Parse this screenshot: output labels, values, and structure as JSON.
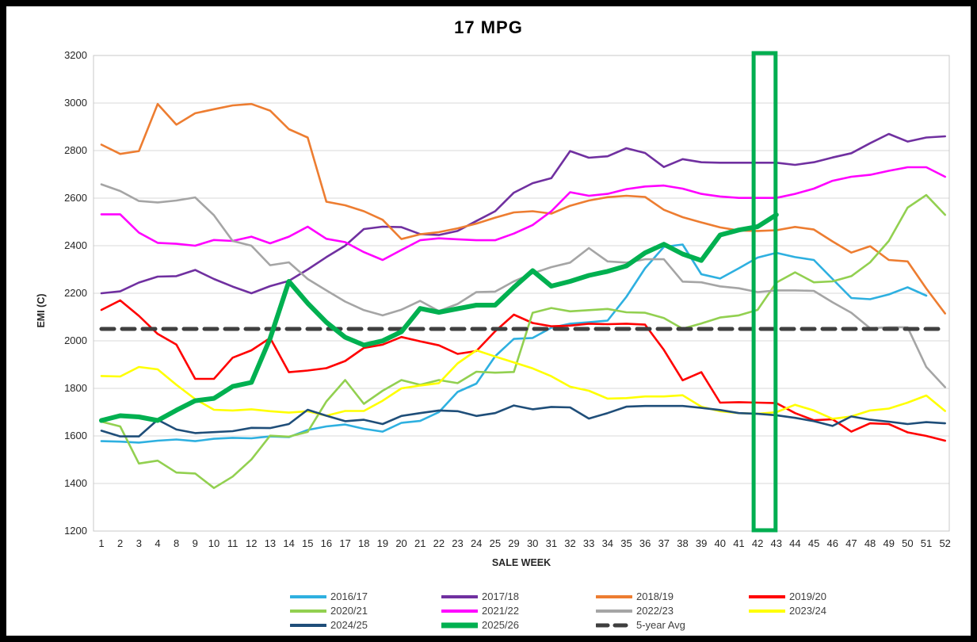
{
  "title": "17 MPG",
  "chart_data": {
    "type": "line",
    "title": "17 MPG",
    "xlabel": "SALE WEEK",
    "ylabel": "EMI (C)",
    "ylim": [
      1200,
      3200
    ],
    "y_ticks": [
      1200,
      1400,
      1600,
      1800,
      2000,
      2200,
      2400,
      2600,
      2800,
      3000,
      3200
    ],
    "grid": true,
    "legend_position": "bottom",
    "gridline_color": "#D9D9D9",
    "plot_border_color": "#C9C9C9",
    "tick_label_color": "#262626",
    "axis_title_color": "#262626",
    "legend_text_color": "#404040",
    "categories": [
      1,
      2,
      3,
      4,
      8,
      9,
      10,
      11,
      12,
      13,
      14,
      15,
      16,
      17,
      18,
      19,
      20,
      21,
      22,
      23,
      24,
      25,
      29,
      30,
      31,
      32,
      33,
      34,
      35,
      36,
      37,
      38,
      39,
      40,
      41,
      42,
      43,
      44,
      45,
      46,
      47,
      48,
      49,
      50,
      51,
      52
    ],
    "series": [
      {
        "name": "2016/17",
        "color": "#2EB0E0",
        "width": 2.6,
        "values": [
          1578,
          1576,
          1572,
          1580,
          1585,
          1578,
          1588,
          1592,
          1590,
          1598,
          1595,
          1625,
          1640,
          1648,
          1630,
          1618,
          1655,
          1663,
          1700,
          1785,
          1820,
          1935,
          2008,
          2012,
          2055,
          2072,
          2078,
          2085,
          2185,
          2305,
          2395,
          2405,
          2280,
          2262,
          2305,
          2350,
          2370,
          2352,
          2340,
          2260,
          2180,
          2175,
          2195,
          2225,
          2190,
          null
        ]
      },
      {
        "name": "2017/18",
        "color": "#7030A0",
        "width": 2.6,
        "values": [
          2200,
          2208,
          2245,
          2270,
          2272,
          2298,
          2260,
          2228,
          2200,
          2230,
          2252,
          2300,
          2352,
          2400,
          2470,
          2480,
          2478,
          2449,
          2445,
          2462,
          2504,
          2545,
          2623,
          2663,
          2684,
          2798,
          2770,
          2776,
          2810,
          2790,
          2731,
          2764,
          2751,
          2749,
          2749,
          2749,
          2749,
          2740,
          2751,
          2771,
          2789,
          2831,
          2870,
          2838,
          2855,
          2860
        ]
      },
      {
        "name": "2018/19",
        "color": "#ED7D31",
        "width": 2.6,
        "values": [
          2825,
          2786,
          2798,
          2996,
          2909,
          2957,
          2974,
          2990,
          2996,
          2968,
          2890,
          2855,
          2585,
          2570,
          2545,
          2509,
          2428,
          2448,
          2457,
          2473,
          2493,
          2518,
          2540,
          2545,
          2535,
          2568,
          2590,
          2604,
          2610,
          2605,
          2551,
          2520,
          2498,
          2477,
          2464,
          2462,
          2465,
          2479,
          2468,
          2418,
          2371,
          2398,
          2340,
          2334,
          2220,
          2115
        ]
      },
      {
        "name": "2019/20",
        "color": "#FF0000",
        "width": 2.6,
        "values": [
          2130,
          2170,
          2105,
          2029,
          1984,
          1840,
          1840,
          1929,
          1960,
          2012,
          1868,
          1875,
          1885,
          1915,
          1970,
          1984,
          2016,
          1998,
          1981,
          1945,
          1957,
          2040,
          2110,
          2075,
          2061,
          2064,
          2072,
          2070,
          2072,
          2068,
          1962,
          1834,
          1868,
          1740,
          1742,
          1740,
          1738,
          1696,
          1666,
          1670,
          1618,
          1653,
          1650,
          1615,
          1600,
          1580
        ]
      },
      {
        "name": "2020/21",
        "color": "#92D050",
        "width": 2.6,
        "values": [
          1660,
          1640,
          1484,
          1496,
          1446,
          1442,
          1381,
          1429,
          1501,
          1601,
          1597,
          1617,
          1745,
          1835,
          1735,
          1790,
          1835,
          1815,
          1835,
          1822,
          1870,
          1866,
          1869,
          2118,
          2138,
          2124,
          2129,
          2134,
          2120,
          2118,
          2096,
          2051,
          2073,
          2098,
          2107,
          2130,
          2245,
          2288,
          2246,
          2250,
          2272,
          2330,
          2420,
          2560,
          2613,
          2530
        ]
      },
      {
        "name": "2021/22",
        "color": "#FF00FF",
        "width": 2.6,
        "values": [
          2532,
          2532,
          2455,
          2412,
          2408,
          2400,
          2424,
          2420,
          2438,
          2410,
          2438,
          2480,
          2429,
          2415,
          2373,
          2340,
          2382,
          2423,
          2431,
          2427,
          2423,
          2423,
          2451,
          2487,
          2545,
          2625,
          2610,
          2618,
          2638,
          2649,
          2653,
          2640,
          2618,
          2607,
          2601,
          2601,
          2601,
          2618,
          2640,
          2673,
          2690,
          2698,
          2715,
          2730,
          2730,
          2690
        ]
      },
      {
        "name": "2022/23",
        "color": "#A5A5A5",
        "width": 2.6,
        "values": [
          2658,
          2630,
          2588,
          2582,
          2590,
          2603,
          2528,
          2420,
          2400,
          2318,
          2330,
          2260,
          2212,
          2165,
          2129,
          2107,
          2131,
          2168,
          2125,
          2155,
          2205,
          2207,
          2250,
          2284,
          2310,
          2329,
          2390,
          2334,
          2329,
          2343,
          2343,
          2249,
          2246,
          2229,
          2221,
          2205,
          2212,
          2212,
          2210,
          2162,
          2118,
          2053,
          2057,
          2057,
          1890,
          1805
        ]
      },
      {
        "name": "2023/24",
        "color": "#FFFF00",
        "width": 2.6,
        "values": [
          1852,
          1850,
          1890,
          1880,
          1815,
          1755,
          1710,
          1707,
          1712,
          1704,
          1698,
          1704,
          1685,
          1705,
          1705,
          1748,
          1800,
          1812,
          1822,
          1905,
          1960,
          1934,
          1909,
          1884,
          1851,
          1807,
          1790,
          1757,
          1759,
          1766,
          1766,
          1771,
          1723,
          1704,
          1696,
          1693,
          1700,
          1731,
          1707,
          1672,
          1682,
          1707,
          1715,
          1740,
          1770,
          1705
        ]
      },
      {
        "name": "2024/25",
        "color": "#1F4E79",
        "width": 2.6,
        "values": [
          1622,
          1598,
          1598,
          1668,
          1627,
          1612,
          1616,
          1620,
          1634,
          1633,
          1650,
          1710,
          1685,
          1662,
          1668,
          1650,
          1684,
          1696,
          1707,
          1704,
          1684,
          1696,
          1728,
          1712,
          1722,
          1720,
          1673,
          1696,
          1723,
          1726,
          1726,
          1726,
          1718,
          1709,
          1696,
          1693,
          1687,
          1676,
          1662,
          1642,
          1682,
          1668,
          1660,
          1650,
          1658,
          1653
        ]
      },
      {
        "name": "2025/26",
        "color": "#00B050",
        "width": 6,
        "values": [
          1665,
          1685,
          1680,
          1665,
          1708,
          1748,
          1758,
          1808,
          1825,
          2010,
          2250,
          2158,
          2078,
          2015,
          1982,
          2000,
          2038,
          2136,
          2120,
          2135,
          2150,
          2150,
          2225,
          2295,
          2230,
          2250,
          2275,
          2292,
          2315,
          2370,
          2406,
          2365,
          2338,
          2445,
          2466,
          2480,
          2530,
          null,
          null,
          null,
          null,
          null,
          null,
          null,
          null,
          null
        ]
      },
      {
        "name": "5-year Avg",
        "color": "#3F3F3F",
        "width": 5,
        "dash": "16 10",
        "values": [
          2050,
          2050,
          2050,
          2050,
          2050,
          2050,
          2050,
          2050,
          2050,
          2050,
          2050,
          2050,
          2050,
          2050,
          2050,
          2050,
          2050,
          2050,
          2050,
          2050,
          2050,
          2050,
          2050,
          2050,
          2050,
          2050,
          2050,
          2050,
          2050,
          2050,
          2050,
          2050,
          2050,
          2050,
          2050,
          2050,
          2050,
          2050,
          2050,
          2050,
          2050,
          2050,
          2050,
          2050,
          2050,
          2050
        ]
      }
    ],
    "annotation": {
      "shape": "rect",
      "from_week": 42,
      "to_week": 43,
      "color": "#00AE50",
      "note": "highlight box around weeks 42-43"
    },
    "legend_entries": [
      "2016/17",
      "2017/18",
      "2018/19",
      "2019/20",
      "2020/21",
      "2021/22",
      "2022/23",
      "2023/24",
      "2024/25",
      "2025/26",
      "5-year Avg"
    ]
  }
}
